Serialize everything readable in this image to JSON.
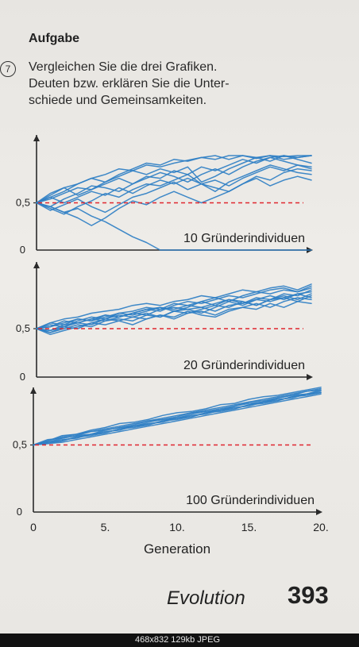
{
  "header": {
    "top_strip": "",
    "heading": "Aufgabe",
    "task_number": "7",
    "task_lines": [
      "Vergleichen Sie die drei Grafiken.",
      "Deuten bzw. erklären Sie die Unter-",
      "schiede und Gemeinsamkeiten."
    ]
  },
  "footer": {
    "title": "Evolution",
    "page_number": "393"
  },
  "statusbar": {
    "info": "468x832  129kb  JPEG"
  },
  "colors": {
    "line": "#2f7fc4",
    "reference": "#e0262f",
    "axis": "#2a2a2a"
  },
  "chart_data": [
    {
      "type": "line",
      "label": "10 Gründerindividuen",
      "y_ticks": [
        "0",
        "0,5"
      ],
      "ylim": [
        0,
        1
      ],
      "xlim": [
        0,
        20
      ],
      "reference_line": 0.5,
      "series": [
        {
          "values": [
            0.5,
            0.56,
            0.62,
            0.7,
            0.76,
            0.8,
            0.86,
            0.84,
            0.9,
            0.88,
            0.92,
            0.95,
            0.98,
            0.96,
            1.0,
            1.0,
            0.97,
            1.0,
            0.99,
            1.0,
            1.0
          ]
        },
        {
          "values": [
            0.5,
            0.58,
            0.66,
            0.7,
            0.76,
            0.72,
            0.78,
            0.84,
            0.8,
            0.86,
            0.82,
            0.88,
            0.72,
            0.78,
            0.86,
            0.92,
            0.98,
            0.94,
            1.0,
            0.98,
            1.0
          ]
        },
        {
          "values": [
            0.5,
            0.54,
            0.6,
            0.66,
            0.64,
            0.72,
            0.8,
            0.86,
            0.92,
            0.9,
            0.96,
            0.94,
            0.98,
            1.0,
            0.96,
            1.0,
            0.98,
            1.0,
            0.96,
            0.98,
            1.0
          ]
        },
        {
          "values": [
            0.5,
            0.46,
            0.54,
            0.6,
            0.68,
            0.66,
            0.62,
            0.7,
            0.78,
            0.76,
            0.84,
            0.8,
            0.88,
            0.84,
            0.9,
            0.96,
            0.92,
            0.98,
            0.94,
            0.9,
            0.86
          ]
        },
        {
          "values": [
            0.5,
            0.44,
            0.38,
            0.46,
            0.52,
            0.6,
            0.56,
            0.64,
            0.7,
            0.68,
            0.74,
            0.8,
            0.7,
            0.62,
            0.72,
            0.78,
            0.84,
            0.9,
            0.86,
            0.82,
            0.8
          ]
        },
        {
          "values": [
            0.5,
            0.6,
            0.66,
            0.58,
            0.64,
            0.7,
            0.76,
            0.7,
            0.76,
            0.82,
            0.78,
            0.72,
            0.8,
            0.86,
            0.8,
            0.88,
            0.94,
            0.98,
            1.0,
            0.96,
            0.92
          ]
        },
        {
          "values": [
            0.5,
            0.42,
            0.48,
            0.54,
            0.46,
            0.4,
            0.48,
            0.56,
            0.6,
            0.66,
            0.72,
            0.64,
            0.7,
            0.74,
            0.68,
            0.76,
            0.82,
            0.88,
            0.84,
            0.9,
            0.88
          ]
        },
        {
          "values": [
            0.5,
            0.46,
            0.4,
            0.34,
            0.26,
            0.34,
            0.44,
            0.52,
            0.48,
            0.56,
            0.62,
            0.56,
            0.5,
            0.56,
            0.62,
            0.7,
            0.76,
            0.68,
            0.74,
            0.78,
            0.74
          ]
        },
        {
          "values": [
            0.5,
            0.46,
            0.4,
            0.44,
            0.36,
            0.3,
            0.22,
            0.14,
            0.08,
            0.0,
            0.0,
            0.0,
            0.0,
            0.0,
            0.0,
            0.0,
            0.0,
            0.0,
            0.0,
            0.0,
            0.0
          ]
        },
        {
          "values": [
            0.5,
            0.56,
            0.5,
            0.56,
            0.62,
            0.58,
            0.66,
            0.6,
            0.68,
            0.74,
            0.7,
            0.76,
            0.7,
            0.66,
            0.62,
            0.7,
            0.78,
            0.74,
            0.82,
            0.86,
            0.84
          ]
        }
      ]
    },
    {
      "type": "line",
      "label": "20 Gründerindividuen",
      "y_ticks": [
        "0",
        "0,5"
      ],
      "ylim": [
        0,
        1
      ],
      "xlim": [
        0,
        20
      ],
      "reference_line": 0.5,
      "series": [
        {
          "values": [
            0.5,
            0.56,
            0.6,
            0.62,
            0.66,
            0.68,
            0.7,
            0.74,
            0.76,
            0.74,
            0.78,
            0.8,
            0.84,
            0.82,
            0.86,
            0.9,
            0.88,
            0.92,
            0.94,
            0.9,
            0.96
          ]
        },
        {
          "values": [
            0.5,
            0.52,
            0.58,
            0.56,
            0.6,
            0.64,
            0.62,
            0.66,
            0.7,
            0.72,
            0.68,
            0.72,
            0.78,
            0.74,
            0.8,
            0.76,
            0.82,
            0.8,
            0.86,
            0.84,
            0.9
          ]
        },
        {
          "values": [
            0.5,
            0.46,
            0.5,
            0.54,
            0.52,
            0.58,
            0.6,
            0.58,
            0.64,
            0.62,
            0.68,
            0.66,
            0.7,
            0.74,
            0.72,
            0.78,
            0.74,
            0.8,
            0.82,
            0.78,
            0.84
          ]
        },
        {
          "values": [
            0.5,
            0.48,
            0.54,
            0.56,
            0.6,
            0.58,
            0.62,
            0.66,
            0.64,
            0.7,
            0.72,
            0.7,
            0.66,
            0.72,
            0.78,
            0.74,
            0.8,
            0.84,
            0.8,
            0.86,
            0.82
          ]
        },
        {
          "values": [
            0.5,
            0.54,
            0.52,
            0.58,
            0.62,
            0.6,
            0.66,
            0.68,
            0.72,
            0.7,
            0.76,
            0.74,
            0.78,
            0.82,
            0.78,
            0.84,
            0.88,
            0.86,
            0.9,
            0.88,
            0.92
          ]
        },
        {
          "values": [
            0.5,
            0.44,
            0.48,
            0.52,
            0.56,
            0.54,
            0.58,
            0.62,
            0.6,
            0.64,
            0.6,
            0.66,
            0.68,
            0.64,
            0.7,
            0.72,
            0.76,
            0.72,
            0.78,
            0.82,
            0.8
          ]
        },
        {
          "values": [
            0.5,
            0.56,
            0.54,
            0.6,
            0.58,
            0.62,
            0.66,
            0.64,
            0.68,
            0.72,
            0.7,
            0.74,
            0.72,
            0.76,
            0.8,
            0.78,
            0.74,
            0.8,
            0.84,
            0.8,
            0.86
          ]
        },
        {
          "values": [
            0.5,
            0.48,
            0.52,
            0.5,
            0.56,
            0.6,
            0.58,
            0.54,
            0.6,
            0.64,
            0.62,
            0.68,
            0.64,
            0.62,
            0.68,
            0.72,
            0.7,
            0.76,
            0.72,
            0.78,
            0.76
          ]
        },
        {
          "values": [
            0.5,
            0.52,
            0.56,
            0.6,
            0.58,
            0.64,
            0.62,
            0.66,
            0.7,
            0.68,
            0.74,
            0.78,
            0.76,
            0.8,
            0.84,
            0.82,
            0.86,
            0.9,
            0.92,
            0.88,
            0.94
          ]
        },
        {
          "values": [
            0.5,
            0.46,
            0.52,
            0.56,
            0.54,
            0.6,
            0.64,
            0.62,
            0.66,
            0.62,
            0.68,
            0.7,
            0.72,
            0.68,
            0.74,
            0.76,
            0.8,
            0.78,
            0.82,
            0.86,
            0.88
          ]
        }
      ]
    },
    {
      "type": "line",
      "label": "100 Gründerindividuen",
      "y_ticks": [
        "0",
        "0,5"
      ],
      "x_ticks": [
        "0",
        "5.",
        "10.",
        "15.",
        "20."
      ],
      "xlabel": "Generation",
      "ylim": [
        0,
        1
      ],
      "xlim": [
        0,
        20
      ],
      "reference_line": 0.5,
      "series": [
        {
          "values": [
            0.5,
            0.53,
            0.56,
            0.58,
            0.6,
            0.62,
            0.64,
            0.66,
            0.68,
            0.7,
            0.72,
            0.74,
            0.76,
            0.78,
            0.8,
            0.82,
            0.84,
            0.86,
            0.88,
            0.9,
            0.92
          ]
        },
        {
          "values": [
            0.5,
            0.52,
            0.54,
            0.55,
            0.58,
            0.6,
            0.61,
            0.64,
            0.66,
            0.67,
            0.7,
            0.72,
            0.73,
            0.76,
            0.78,
            0.79,
            0.82,
            0.84,
            0.85,
            0.88,
            0.9
          ]
        },
        {
          "values": [
            0.5,
            0.51,
            0.53,
            0.56,
            0.57,
            0.59,
            0.62,
            0.63,
            0.65,
            0.68,
            0.69,
            0.71,
            0.74,
            0.75,
            0.77,
            0.8,
            0.81,
            0.83,
            0.86,
            0.87,
            0.89
          ]
        },
        {
          "values": [
            0.5,
            0.54,
            0.55,
            0.57,
            0.6,
            0.61,
            0.63,
            0.65,
            0.68,
            0.69,
            0.71,
            0.74,
            0.75,
            0.77,
            0.79,
            0.82,
            0.83,
            0.85,
            0.87,
            0.9,
            0.91
          ]
        },
        {
          "values": [
            0.5,
            0.52,
            0.55,
            0.57,
            0.58,
            0.61,
            0.63,
            0.64,
            0.67,
            0.69,
            0.7,
            0.73,
            0.75,
            0.76,
            0.79,
            0.81,
            0.82,
            0.85,
            0.87,
            0.88,
            0.91
          ]
        },
        {
          "values": [
            0.5,
            0.51,
            0.52,
            0.54,
            0.56,
            0.58,
            0.6,
            0.62,
            0.64,
            0.66,
            0.68,
            0.7,
            0.72,
            0.74,
            0.76,
            0.78,
            0.8,
            0.82,
            0.84,
            0.86,
            0.88
          ]
        },
        {
          "values": [
            0.5,
            0.53,
            0.57,
            0.58,
            0.61,
            0.63,
            0.66,
            0.67,
            0.69,
            0.72,
            0.74,
            0.75,
            0.77,
            0.8,
            0.81,
            0.84,
            0.86,
            0.87,
            0.89,
            0.91,
            0.93
          ]
        },
        {
          "values": [
            0.5,
            0.52,
            0.53,
            0.56,
            0.58,
            0.59,
            0.62,
            0.64,
            0.65,
            0.68,
            0.7,
            0.71,
            0.74,
            0.76,
            0.77,
            0.8,
            0.82,
            0.83,
            0.86,
            0.88,
            0.89
          ]
        }
      ]
    }
  ]
}
